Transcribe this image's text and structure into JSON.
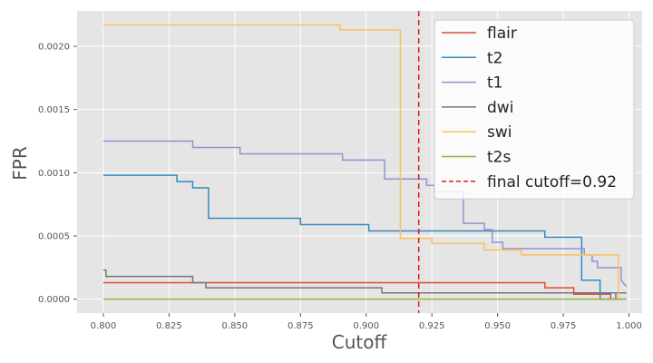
{
  "chart_data": {
    "type": "line",
    "xlabel": "Cutoff",
    "ylabel": "FPR",
    "xlim": [
      0.79,
      1.005
    ],
    "ylim": [
      -0.00011,
      0.00228
    ],
    "xticks": [
      0.8,
      0.825,
      0.85,
      0.875,
      0.9,
      0.925,
      0.95,
      0.975,
      1.0
    ],
    "xtick_labels": [
      "0.800",
      "0.825",
      "0.850",
      "0.875",
      "0.900",
      "0.925",
      "0.950",
      "0.975",
      "1.000"
    ],
    "yticks": [
      0.0,
      0.0005,
      0.001,
      0.0015,
      0.002
    ],
    "ytick_labels": [
      "0.0000",
      "0.0005",
      "0.0010",
      "0.0015",
      "0.0020"
    ],
    "grid": true,
    "legend_position": "top-right",
    "series": [
      {
        "name": "flair",
        "color": "#E24A33",
        "points": [
          [
            0.8,
            0.00013
          ],
          [
            0.968,
            0.00013
          ],
          [
            0.968,
            9e-05
          ],
          [
            0.979,
            9e-05
          ],
          [
            0.979,
            4e-05
          ],
          [
            0.993,
            4e-05
          ],
          [
            0.993,
            0.0
          ],
          [
            0.999,
            0.0
          ]
        ]
      },
      {
        "name": "t2",
        "color": "#348ABD",
        "points": [
          [
            0.8,
            0.00098
          ],
          [
            0.828,
            0.00098
          ],
          [
            0.828,
            0.00093
          ],
          [
            0.834,
            0.00093
          ],
          [
            0.834,
            0.00088
          ],
          [
            0.84,
            0.00088
          ],
          [
            0.84,
            0.00064
          ],
          [
            0.875,
            0.00064
          ],
          [
            0.875,
            0.00059
          ],
          [
            0.901,
            0.00059
          ],
          [
            0.901,
            0.00054
          ],
          [
            0.968,
            0.00054
          ],
          [
            0.968,
            0.00049
          ],
          [
            0.982,
            0.00049
          ],
          [
            0.982,
            0.00015
          ],
          [
            0.986,
            0.00015
          ],
          [
            0.986,
            0.00015
          ],
          [
            0.989,
            0.00015
          ],
          [
            0.989,
            5e-05
          ],
          [
            0.999,
            5e-05
          ]
        ]
      },
      {
        "name": "t1",
        "color": "#988ED5",
        "points": [
          [
            0.8,
            0.00125
          ],
          [
            0.834,
            0.00125
          ],
          [
            0.834,
            0.0012
          ],
          [
            0.852,
            0.0012
          ],
          [
            0.852,
            0.00115
          ],
          [
            0.891,
            0.00115
          ],
          [
            0.891,
            0.0011
          ],
          [
            0.907,
            0.0011
          ],
          [
            0.907,
            0.00095
          ],
          [
            0.923,
            0.00095
          ],
          [
            0.923,
            0.0009
          ],
          [
            0.926,
            0.0009
          ],
          [
            0.926,
            0.00085
          ],
          [
            0.937,
            0.00085
          ],
          [
            0.937,
            0.0006
          ],
          [
            0.945,
            0.0006
          ],
          [
            0.945,
            0.00055
          ],
          [
            0.948,
            0.00055
          ],
          [
            0.948,
            0.00045
          ],
          [
            0.952,
            0.00045
          ],
          [
            0.952,
            0.0004
          ],
          [
            0.983,
            0.0004
          ],
          [
            0.983,
            0.00035
          ],
          [
            0.986,
            0.00035
          ],
          [
            0.986,
            0.0003
          ],
          [
            0.988,
            0.0003
          ],
          [
            0.988,
            0.00025
          ],
          [
            0.997,
            0.00025
          ],
          [
            0.997,
            0.00015
          ],
          [
            0.999,
            0.0001
          ]
        ]
      },
      {
        "name": "dwi",
        "color": "#777777",
        "points": [
          [
            0.8,
            0.00023
          ],
          [
            0.801,
            0.00023
          ],
          [
            0.801,
            0.00018
          ],
          [
            0.834,
            0.00018
          ],
          [
            0.834,
            0.00013
          ],
          [
            0.839,
            0.00013
          ],
          [
            0.839,
            9e-05
          ],
          [
            0.906,
            9e-05
          ],
          [
            0.906,
            5e-05
          ],
          [
            0.989,
            5e-05
          ],
          [
            0.989,
            0.0
          ],
          [
            0.995,
            0.0
          ],
          [
            0.995,
            5e-05
          ],
          [
            0.999,
            5e-05
          ]
        ]
      },
      {
        "name": "swi",
        "color": "#FBC15E",
        "points": [
          [
            0.8,
            0.00217
          ],
          [
            0.89,
            0.00217
          ],
          [
            0.89,
            0.00213
          ],
          [
            0.913,
            0.00213
          ],
          [
            0.913,
            0.00048
          ],
          [
            0.925,
            0.00048
          ],
          [
            0.925,
            0.00044
          ],
          [
            0.945,
            0.00044
          ],
          [
            0.945,
            0.00039
          ],
          [
            0.959,
            0.00039
          ],
          [
            0.959,
            0.00035
          ],
          [
            0.996,
            0.00035
          ],
          [
            0.996,
            0.0
          ],
          [
            0.999,
            0.0
          ]
        ]
      },
      {
        "name": "t2s",
        "color": "#8EBA42",
        "points": [
          [
            0.8,
            0.0
          ],
          [
            0.999,
            0.0
          ]
        ]
      }
    ],
    "reference_line": {
      "name": "final cutoff=0.92",
      "x": 0.92,
      "color": "#E41A1C",
      "style": "dashed"
    }
  }
}
